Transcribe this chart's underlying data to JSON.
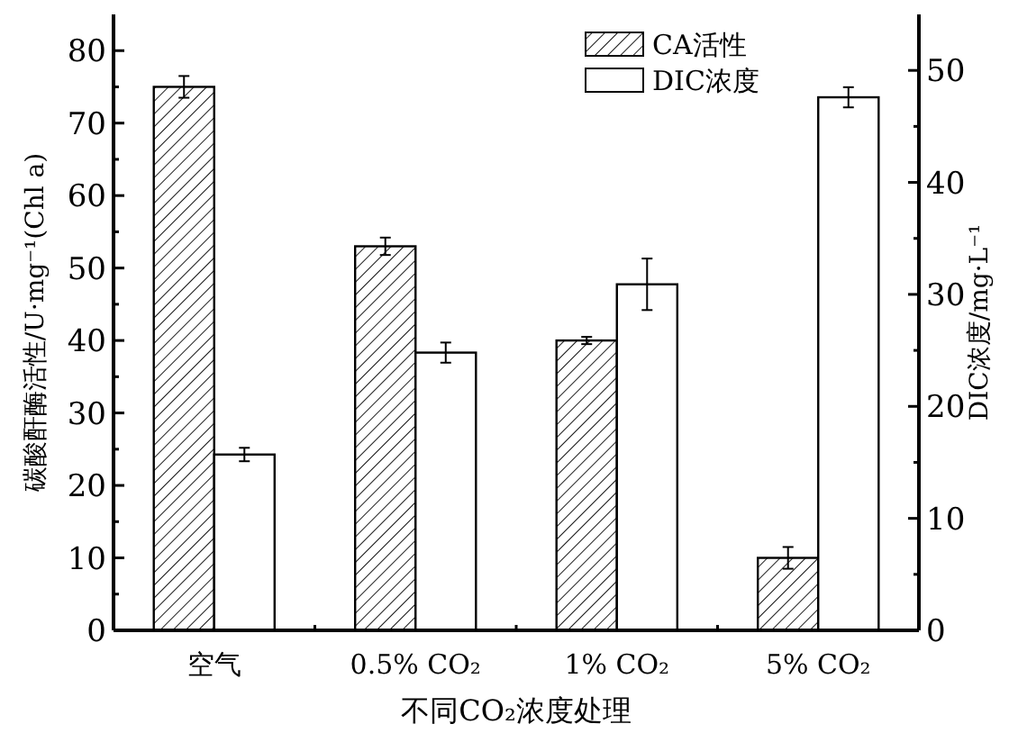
{
  "chart_data": {
    "type": "bar",
    "xlabel": "不同CO₂浓度处理",
    "ylabel": "碳酸酐酶活性/U·mg⁻¹(Chl a)",
    "y2label": "DIC浓度/mg·L⁻¹",
    "categories": [
      "空气",
      "0.5% CO₂",
      "1% CO₂",
      "5% CO₂"
    ],
    "series": [
      {
        "name": "CA活性",
        "color": "#000000",
        "values": [
          75,
          53,
          40,
          10
        ],
        "errors": [
          1.5,
          1.2,
          0.5,
          1.5
        ]
      },
      {
        "name": "DIC浓度",
        "color": "#ffffff",
        "axis": "y2",
        "values": [
          15.7,
          24.8,
          30.9,
          47.6
        ],
        "errors": [
          0.6,
          0.9,
          2.3,
          0.9
        ]
      }
    ],
    "ylim": [
      0,
      85
    ],
    "yticks": [
      0,
      10,
      20,
      30,
      40,
      50,
      60,
      70,
      80
    ],
    "y2lim": [
      0,
      55
    ],
    "y2ticks": [
      0,
      10,
      20,
      30,
      40,
      50
    ],
    "legend": "top right",
    "grid": false
  }
}
